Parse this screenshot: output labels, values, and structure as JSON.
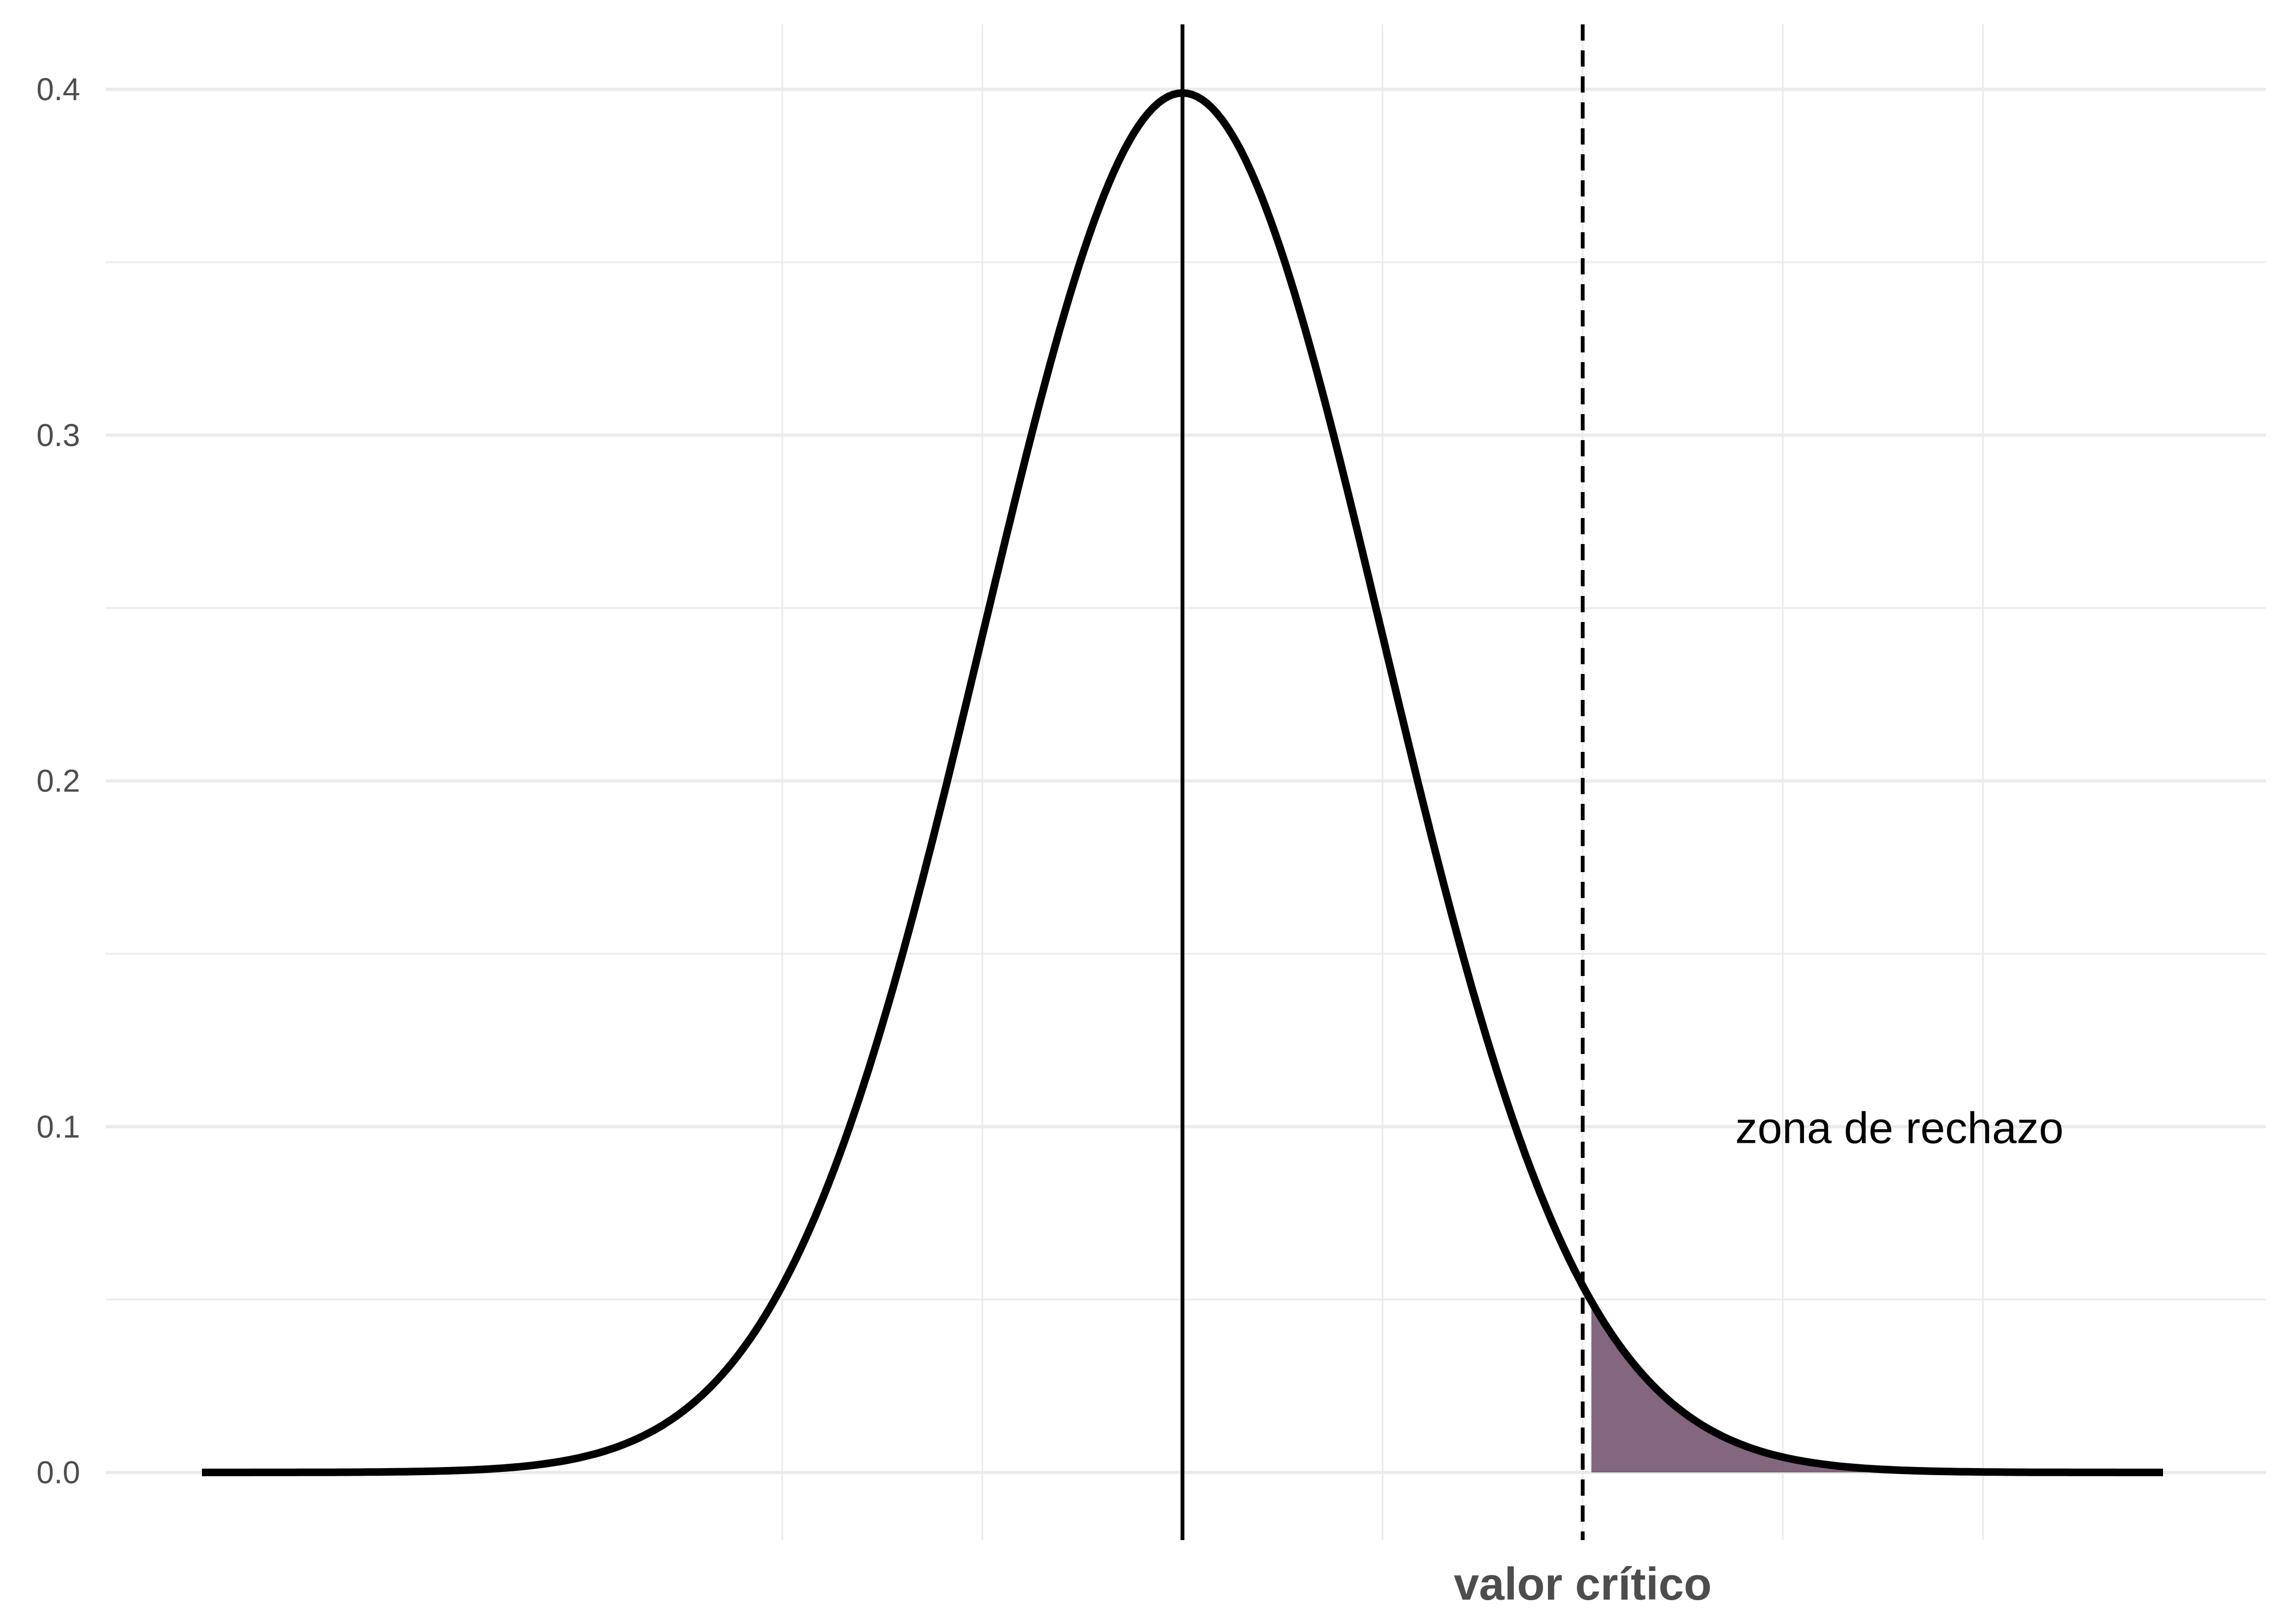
{
  "chart_data": {
    "type": "area",
    "distribution": "standard normal density",
    "x_range": [
      -4.9,
      4.9
    ],
    "ylim": [
      0,
      0.4
    ],
    "y_ticks": [
      "0.0",
      "0.1",
      "0.2",
      "0.3",
      "0.4"
    ],
    "y_tick_values": [
      0,
      0.1,
      0.2,
      0.3,
      0.4
    ],
    "x_ticks": [],
    "grid": true,
    "mean": 0,
    "critical_value": 2.0,
    "shaded_region": {
      "from": 2.0,
      "to": 4.9
    },
    "annotation": "zona de rechazo",
    "xlabel": "valor crítico",
    "colors": {
      "curve": "#000000",
      "shade": "#5a3453",
      "grid": "#ebebeb",
      "text": "#4d4d4d"
    }
  }
}
